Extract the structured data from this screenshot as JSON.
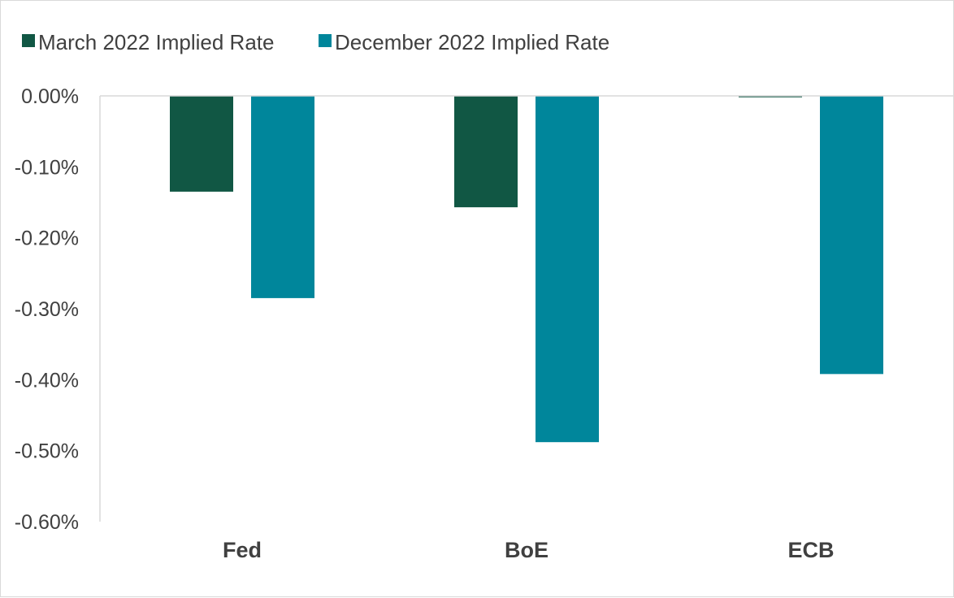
{
  "chart_data": {
    "type": "bar",
    "categories": [
      "Fed",
      "BoE",
      "ECB"
    ],
    "series": [
      {
        "name": "March 2022 Implied Rate",
        "color": "#115744",
        "values": [
          -0.135,
          -0.157,
          -0.002
        ]
      },
      {
        "name": "December 2022 Implied Rate",
        "color": "#00869b",
        "values": [
          -0.285,
          -0.488,
          -0.392
        ]
      }
    ],
    "y_ticks": [
      0,
      -0.1,
      -0.2,
      -0.3,
      -0.4,
      -0.5,
      -0.6
    ],
    "y_tick_labels": [
      "0.00%",
      "-0.10%",
      "-0.20%",
      "-0.30%",
      "-0.40%",
      "-0.50%",
      "-0.60%"
    ],
    "ylim": [
      -0.6,
      0
    ],
    "grid": false,
    "legend_position": "top-left",
    "title": "",
    "xlabel": "",
    "ylabel": ""
  }
}
